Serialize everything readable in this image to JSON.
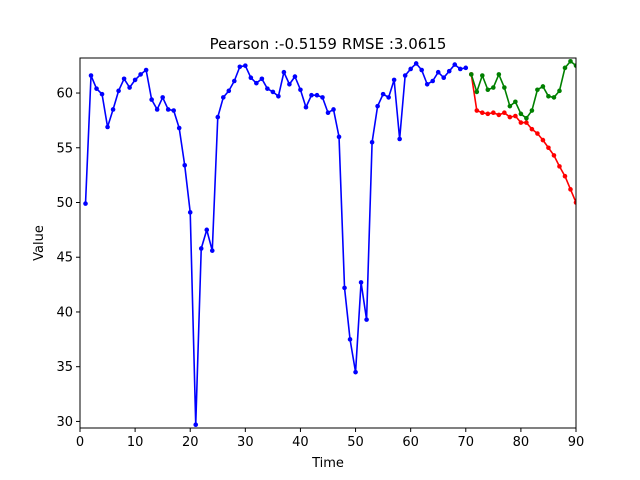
{
  "chart_data": {
    "type": "line",
    "title": "Pearson :-0.5159  RMSE :3.0615",
    "xlabel": "Time",
    "ylabel": "Value",
    "xlim": [
      0,
      90
    ],
    "ylim": [
      29.4,
      63.2
    ],
    "xticks": [
      0,
      10,
      20,
      30,
      40,
      50,
      60,
      70,
      80,
      90
    ],
    "yticks": [
      30,
      35,
      40,
      45,
      50,
      55,
      60
    ],
    "grid": false,
    "series": [
      {
        "color": "#0000ff",
        "x": [
          1,
          2,
          3,
          4,
          5,
          6,
          7,
          8,
          9,
          10,
          11,
          12,
          13,
          14,
          15,
          16,
          17,
          18,
          19,
          20,
          21,
          22,
          23,
          24,
          25,
          26,
          27,
          28,
          29,
          30,
          31,
          32,
          33,
          34,
          35,
          36,
          37,
          38,
          39,
          40,
          41,
          42,
          43,
          44,
          45,
          46,
          47,
          48,
          49,
          50,
          51,
          52,
          53,
          54,
          55,
          56,
          57,
          58,
          59,
          60,
          61,
          62,
          63,
          64,
          65,
          66,
          67,
          68,
          69,
          70
        ],
        "y": [
          49.9,
          61.6,
          60.4,
          59.9,
          56.9,
          58.5,
          60.2,
          61.3,
          60.5,
          61.2,
          61.7,
          62.1,
          59.4,
          58.5,
          59.6,
          58.5,
          58.4,
          56.8,
          53.4,
          49.1,
          29.7,
          45.8,
          47.5,
          45.6,
          57.8,
          59.6,
          60.2,
          61.1,
          62.4,
          62.5,
          61.4,
          60.9,
          61.3,
          60.4,
          60.1,
          59.7,
          61.9,
          60.8,
          61.5,
          60.3,
          58.7,
          59.8,
          59.8,
          59.6,
          58.2,
          58.5,
          56.0,
          42.2,
          37.5,
          34.5,
          42.7,
          39.3,
          55.5,
          58.8,
          59.9,
          59.6,
          61.2,
          55.8,
          61.6,
          62.2,
          62.7,
          62.1,
          60.8,
          61.1,
          61.9,
          61.4,
          62.0,
          62.6,
          62.2,
          62.3
        ]
      },
      {
        "color": "#ff0000",
        "x": [
          71,
          72,
          73,
          74,
          75,
          76,
          77,
          78,
          79,
          80,
          81,
          82,
          83,
          84,
          85,
          86,
          87,
          88,
          89,
          90
        ],
        "y": [
          61.7,
          58.4,
          58.2,
          58.1,
          58.2,
          58.0,
          58.2,
          57.8,
          57.9,
          57.3,
          57.3,
          56.7,
          56.3,
          55.7,
          55.0,
          54.3,
          53.3,
          52.4,
          51.2,
          50.0
        ]
      },
      {
        "color": "#008000",
        "x": [
          71,
          72,
          73,
          74,
          75,
          76,
          77,
          78,
          79,
          80,
          81,
          82,
          83,
          84,
          85,
          86,
          87,
          88,
          89,
          90
        ],
        "y": [
          61.7,
          60.1,
          61.6,
          60.3,
          60.5,
          61.7,
          60.5,
          58.8,
          59.2,
          58.1,
          57.7,
          58.4,
          60.3,
          60.6,
          59.7,
          59.6,
          60.2,
          62.3,
          62.9,
          62.5
        ]
      }
    ]
  }
}
